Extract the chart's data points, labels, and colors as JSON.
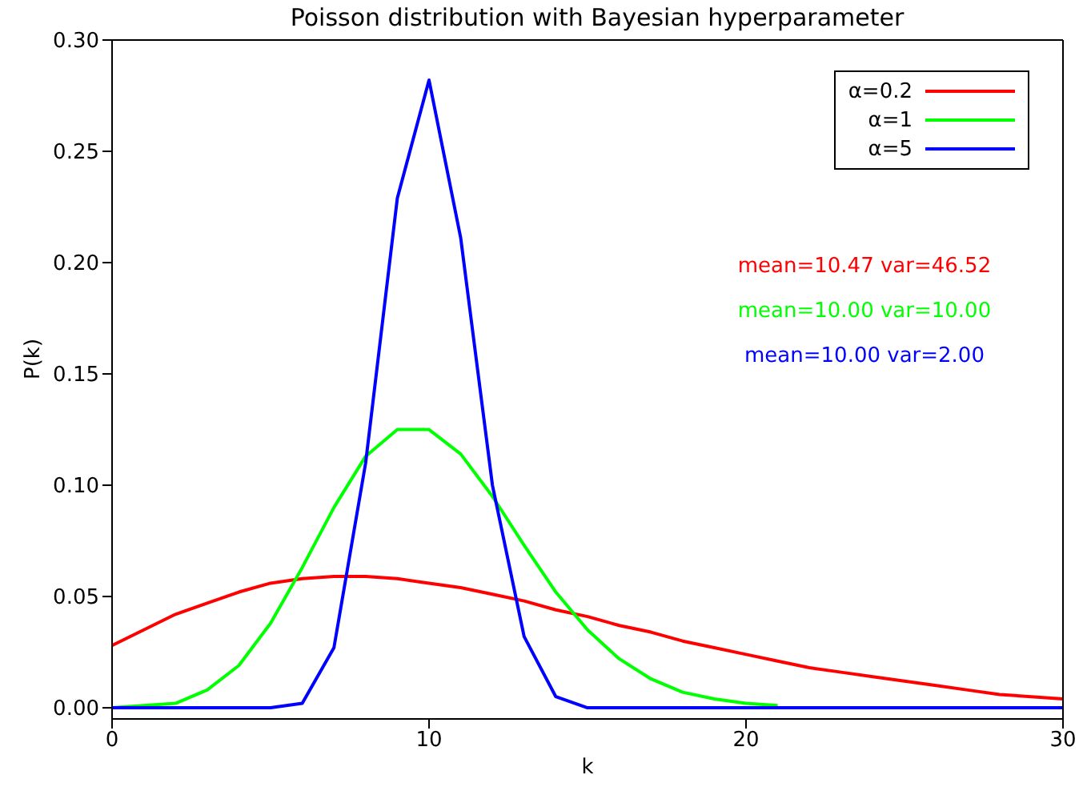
{
  "chart_data": {
    "type": "line",
    "title": "Poisson distribution with Bayesian hyperparameter",
    "xlabel": "k",
    "ylabel": "P(k)",
    "x": [
      0,
      1,
      2,
      3,
      4,
      5,
      6,
      7,
      8,
      9,
      10,
      11,
      12,
      13,
      14,
      15,
      16,
      17,
      18,
      19,
      20,
      21,
      22,
      23,
      24,
      25,
      26,
      27,
      28,
      29,
      30
    ],
    "series": [
      {
        "name": "α=0.2",
        "color": "#ff0000",
        "values": [
          0.028,
          0.035,
          0.042,
          0.047,
          0.052,
          0.056,
          0.058,
          0.059,
          0.059,
          0.058,
          0.056,
          0.054,
          0.051,
          0.048,
          0.044,
          0.041,
          0.037,
          0.034,
          0.03,
          0.027,
          0.024,
          0.021,
          0.018,
          0.016,
          0.014,
          0.012,
          0.01,
          0.008,
          0.006,
          0.005,
          0.004
        ]
      },
      {
        "name": "α=1",
        "color": "#00ff00",
        "values": [
          0.0,
          0.001,
          0.002,
          0.008,
          0.019,
          0.038,
          0.063,
          0.09,
          0.113,
          0.125,
          0.125,
          0.114,
          0.095,
          0.073,
          0.052,
          0.035,
          0.022,
          0.013,
          0.007,
          0.004,
          0.002,
          0.001,
          null,
          null,
          null,
          null,
          null,
          null,
          null,
          null,
          null
        ]
      },
      {
        "name": "α=5",
        "color": "#0000ff",
        "values": [
          0.0,
          0.0,
          0.0,
          0.0,
          0.0,
          0.0,
          0.002,
          0.027,
          0.11,
          0.229,
          0.282,
          0.211,
          0.1,
          0.032,
          0.005,
          0.0,
          0.0,
          0.0,
          0.0,
          0.0,
          0.0,
          0.0,
          0.0,
          0.0,
          0.0,
          0.0,
          0.0,
          0.0,
          0.0,
          0.0,
          0.0
        ]
      }
    ],
    "xlim": [
      0,
      30
    ],
    "xticks": [
      0,
      10,
      20,
      30
    ],
    "ylim": [
      -0.005,
      0.3
    ],
    "yticks": [
      {
        "value": 0,
        "label": "0.00"
      },
      {
        "value": 0.05,
        "label": "0.05"
      },
      {
        "value": 0.1,
        "label": "0.10"
      },
      {
        "value": 0.15,
        "label": "0.15"
      },
      {
        "value": 0.2,
        "label": "0.20"
      },
      {
        "value": 0.25,
        "label": "0.25"
      },
      {
        "value": 0.3,
        "label": "0.30"
      }
    ],
    "legend": "top right",
    "annotations": [
      "mean=10.47 var=46.52",
      "mean=10.00 var=10.00",
      "mean=10.00 var=2.00"
    ]
  }
}
